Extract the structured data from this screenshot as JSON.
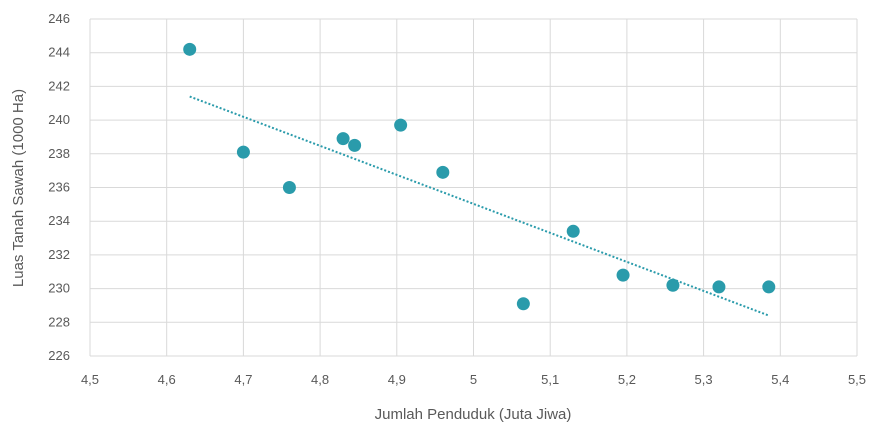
{
  "chart_data": {
    "type": "scatter",
    "title": "",
    "xlabel": "Jumlah Penduduk (Juta Jiwa)",
    "ylabel": "Luas Tanah Sawah (1000 Ha)",
    "xlim": [
      4.5,
      5.5
    ],
    "ylim": [
      226,
      246
    ],
    "x_ticks": [
      "4,5",
      "4,6",
      "4,7",
      "4,8",
      "4,9",
      "5",
      "5,1",
      "5,2",
      "5,3",
      "5,4",
      "5,5"
    ],
    "y_ticks": [
      "226",
      "228",
      "230",
      "232",
      "234",
      "236",
      "238",
      "240",
      "242",
      "244",
      "246"
    ],
    "grid": true,
    "series": [
      {
        "x": [
          4.63,
          4.7,
          4.76,
          4.83,
          4.845,
          4.905,
          4.96,
          5.065,
          5.13,
          5.195,
          5.26,
          5.32,
          5.385
        ],
        "y": [
          244.2,
          238.1,
          236.0,
          238.9,
          238.5,
          239.7,
          236.9,
          229.1,
          233.4,
          230.8,
          230.2,
          230.1,
          230.1
        ]
      }
    ],
    "trendline": {
      "x": [
        4.63,
        5.385
      ],
      "y": [
        241.4,
        228.4
      ],
      "style": "dotted"
    },
    "colors": {
      "point": "#2a9bab",
      "trend": "#2a9bab",
      "grid": "#d9d9d9",
      "axis_text": "#595959"
    }
  }
}
